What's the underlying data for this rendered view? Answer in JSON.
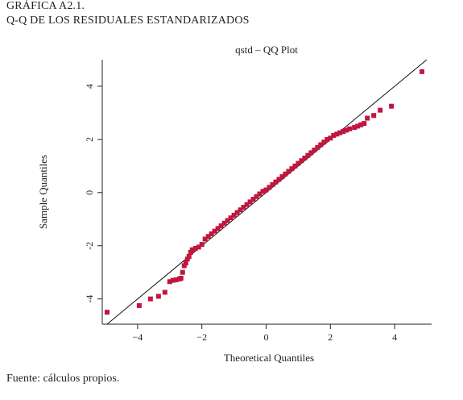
{
  "header": {
    "line1": "GRÁFICA A2.1.",
    "line2": "Q-Q DE LOS RESIDUALES ESTANDARIZADOS"
  },
  "source": "Fuente: cálculos propios.",
  "colors": {
    "points": "#c0163f",
    "line": "#111111",
    "axis": "#222222",
    "text": "#222222"
  },
  "chart_data": {
    "type": "scatter",
    "title": "qstd – QQ Plot",
    "xlabel": "Theoretical Quantiles",
    "ylabel": "Sample Quantiles",
    "xlim": [
      -5.1,
      5.15
    ],
    "ylim": [
      -4.95,
      5.0
    ],
    "xticks": [
      -4,
      -2,
      0,
      2,
      4
    ],
    "xtick_labels": [
      "−4",
      "−2",
      "0",
      "2",
      "4"
    ],
    "yticks": [
      -4,
      -2,
      0,
      2,
      4
    ],
    "ytick_labels": [
      "-4",
      "-2",
      "0",
      "2",
      "4"
    ],
    "grid": false,
    "reference_line": {
      "slope": 1,
      "intercept": 0
    },
    "series": [
      {
        "x": [
          -4.95,
          -3.95,
          -3.6,
          -3.35,
          -3.15,
          -3.0,
          -2.9,
          -2.8,
          -2.7,
          -2.65,
          -2.6,
          -2.55,
          -2.5,
          -2.45,
          -2.4,
          -2.35,
          -2.3,
          -2.2,
          -2.1,
          -2.0,
          -1.9,
          -1.8,
          -1.7,
          -1.6,
          -1.5,
          -1.4,
          -1.3,
          -1.2,
          -1.1,
          -1.0,
          -0.9,
          -0.8,
          -0.7,
          -0.6,
          -0.5,
          -0.4,
          -0.3,
          -0.2,
          -0.1,
          0.0,
          0.1,
          0.2,
          0.3,
          0.4,
          0.5,
          0.6,
          0.7,
          0.8,
          0.9,
          1.0,
          1.1,
          1.2,
          1.3,
          1.4,
          1.5,
          1.6,
          1.7,
          1.8,
          1.9,
          2.0,
          2.1,
          2.2,
          2.3,
          2.4,
          2.5,
          2.6,
          2.75,
          2.85,
          2.95,
          3.05,
          3.15,
          3.35,
          3.55,
          3.9,
          4.85
        ],
        "y": [
          -4.5,
          -4.25,
          -4.0,
          -3.9,
          -3.75,
          -3.35,
          -3.3,
          -3.28,
          -3.25,
          -3.22,
          -3.0,
          -2.75,
          -2.65,
          -2.5,
          -2.4,
          -2.25,
          -2.15,
          -2.1,
          -2.05,
          -1.95,
          -1.75,
          -1.65,
          -1.55,
          -1.45,
          -1.35,
          -1.25,
          -1.15,
          -1.05,
          -0.95,
          -0.85,
          -0.75,
          -0.65,
          -0.55,
          -0.45,
          -0.35,
          -0.25,
          -0.15,
          -0.05,
          0.05,
          0.1,
          0.2,
          0.3,
          0.4,
          0.5,
          0.6,
          0.7,
          0.8,
          0.9,
          1.0,
          1.1,
          1.2,
          1.3,
          1.4,
          1.5,
          1.6,
          1.7,
          1.8,
          1.9,
          2.0,
          2.05,
          2.15,
          2.2,
          2.25,
          2.3,
          2.35,
          2.4,
          2.45,
          2.5,
          2.55,
          2.6,
          2.8,
          2.9,
          3.1,
          3.25,
          4.55
        ]
      }
    ]
  }
}
